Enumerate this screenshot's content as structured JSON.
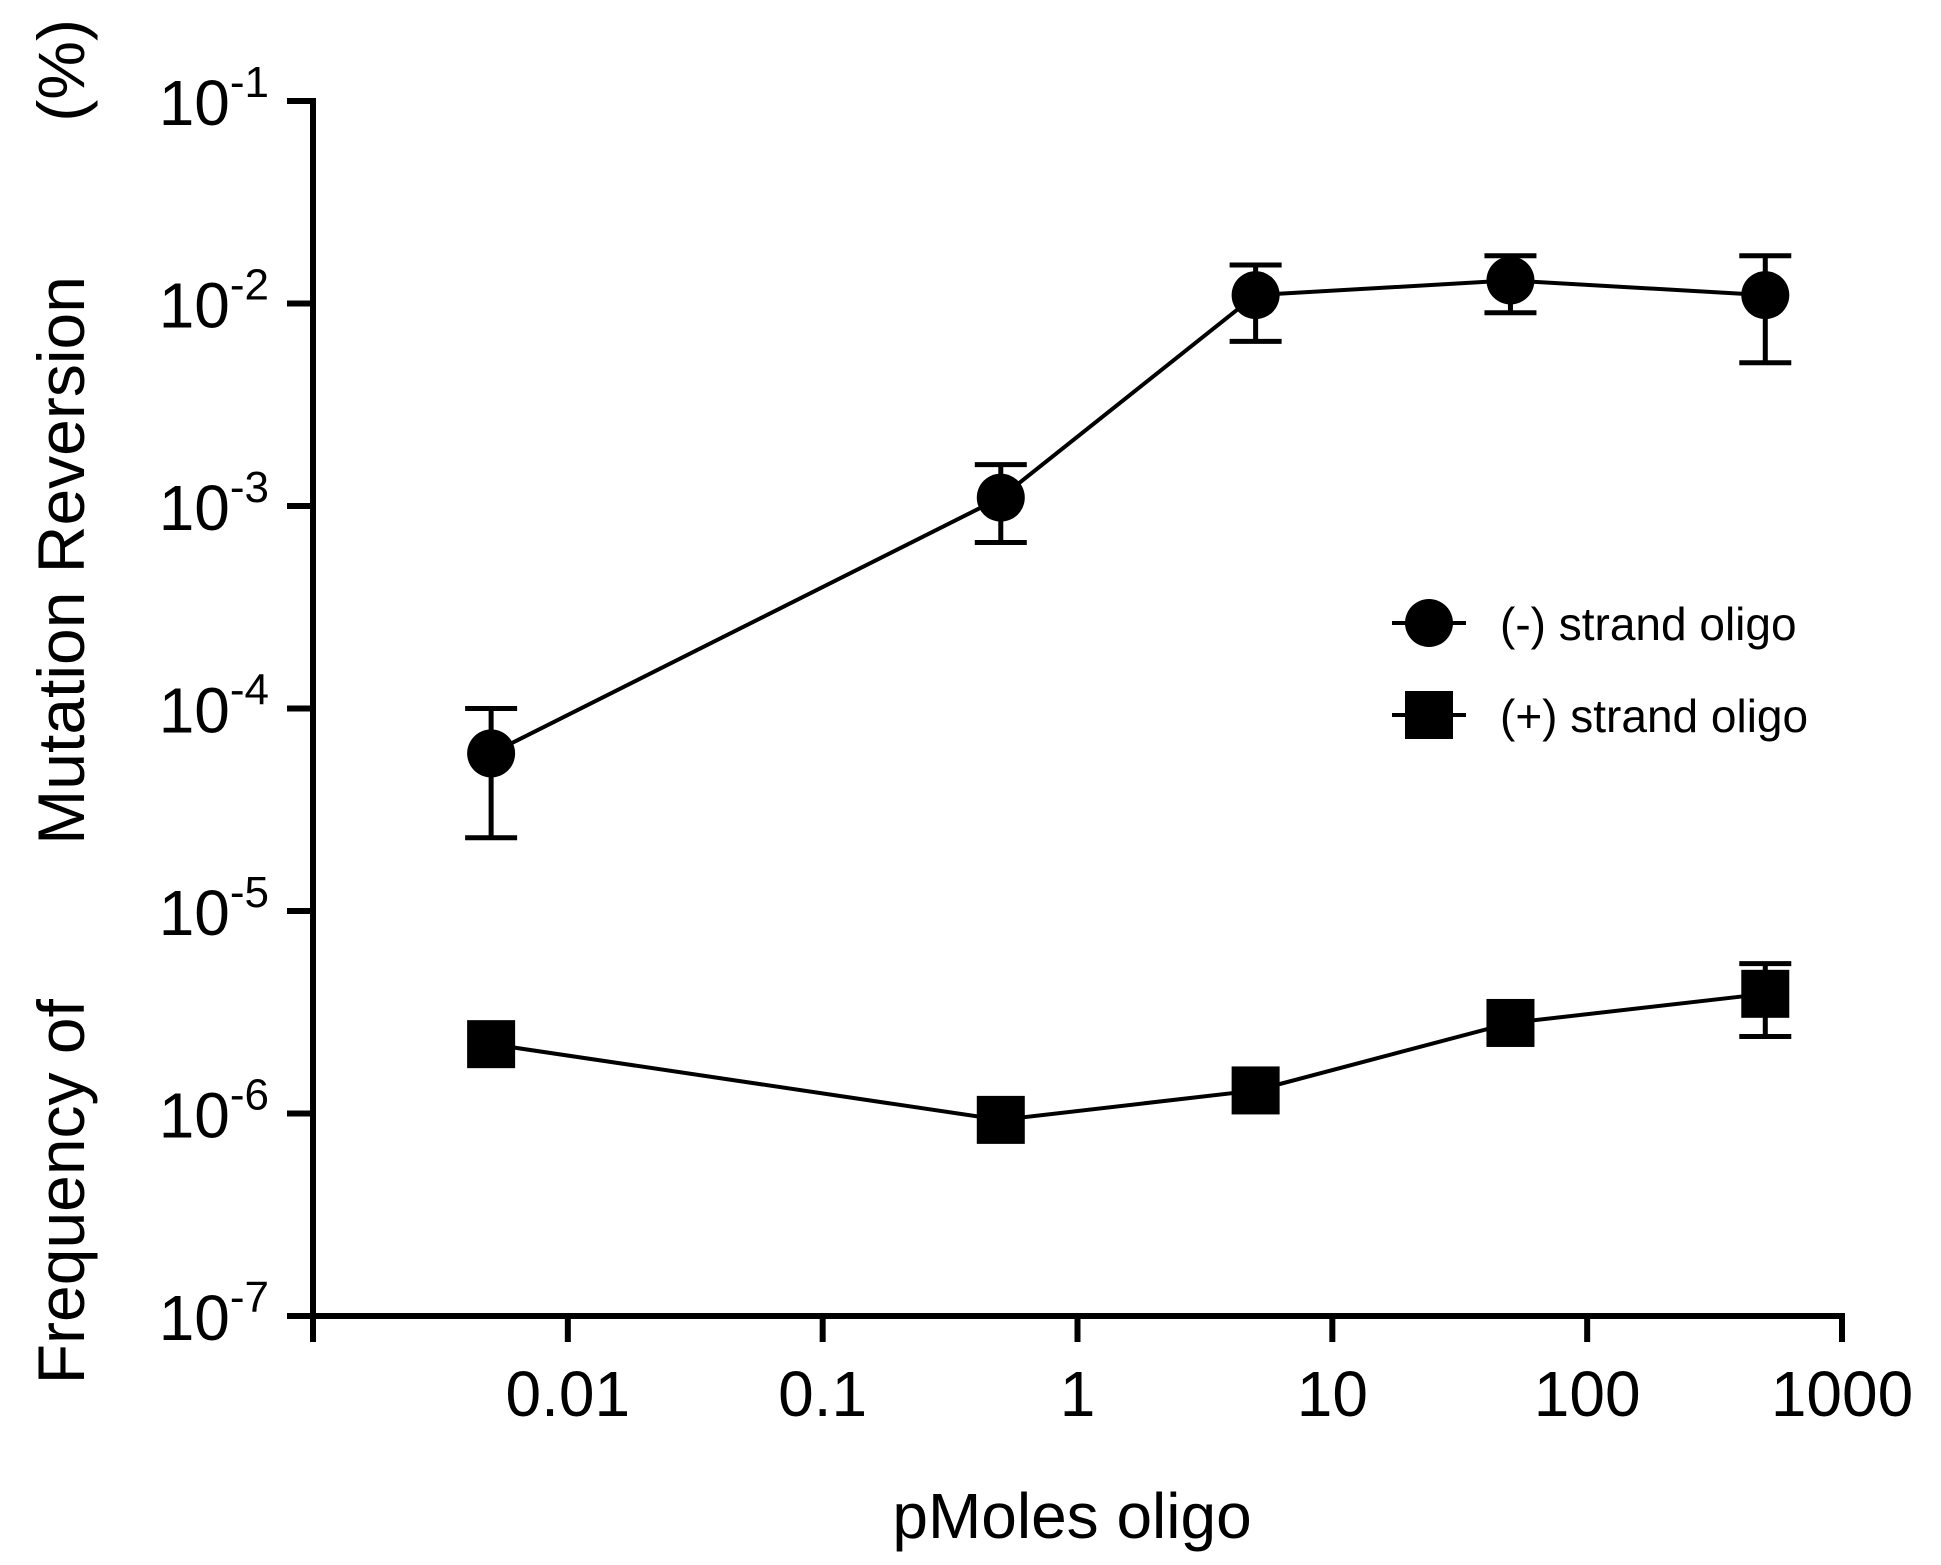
{
  "chart_data": {
    "type": "scatter",
    "xscale": "log",
    "yscale": "log",
    "xlabel": "pMoles oligo",
    "ylabel_parts": [
      "Frequency of",
      "Mutation Reversion",
      "(%)"
    ],
    "xlim": [
      0.001,
      1000
    ],
    "ylim": [
      1e-07,
      0.1
    ],
    "xticks": [
      {
        "value": 0.01,
        "label": "0.01"
      },
      {
        "value": 0.1,
        "label": "0.1"
      },
      {
        "value": 1,
        "label": "1"
      },
      {
        "value": 10,
        "label": "10"
      },
      {
        "value": 100,
        "label": "100"
      },
      {
        "value": 1000,
        "label": "1000"
      }
    ],
    "yticks": [
      {
        "value": 0.1,
        "base": "10",
        "exp": "-1"
      },
      {
        "value": 0.01,
        "base": "10",
        "exp": "-2"
      },
      {
        "value": 0.001,
        "base": "10",
        "exp": "-3"
      },
      {
        "value": 0.0001,
        "base": "10",
        "exp": "-4"
      },
      {
        "value": 1e-05,
        "base": "10",
        "exp": "-5"
      },
      {
        "value": 1e-06,
        "base": "10",
        "exp": "-6"
      },
      {
        "value": 1e-07,
        "base": "10",
        "exp": "-7"
      }
    ],
    "series": [
      {
        "name": "(-) strand oligo",
        "marker": "circle",
        "color": "#000000",
        "points": [
          {
            "x": 0.005,
            "y": 6e-05,
            "lo": 2.3e-05,
            "hi": 0.0001
          },
          {
            "x": 0.5,
            "y": 0.0011,
            "lo": 0.00066,
            "hi": 0.0016
          },
          {
            "x": 5,
            "y": 0.011,
            "lo": 0.0065,
            "hi": 0.0155
          },
          {
            "x": 50,
            "y": 0.013,
            "lo": 0.009,
            "hi": 0.0172
          },
          {
            "x": 500,
            "y": 0.011,
            "lo": 0.0051,
            "hi": 0.0172
          }
        ]
      },
      {
        "name": "(+) strand oligo",
        "marker": "square",
        "color": "#000000",
        "points": [
          {
            "x": 0.005,
            "y": 2.2e-06,
            "lo": null,
            "hi": null
          },
          {
            "x": 0.5,
            "y": 9.3e-07,
            "lo": null,
            "hi": null
          },
          {
            "x": 5,
            "y": 1.3e-06,
            "lo": null,
            "hi": null
          },
          {
            "x": 50,
            "y": 2.8e-06,
            "lo": null,
            "hi": null
          },
          {
            "x": 500,
            "y": 3.9e-06,
            "lo": 2.4e-06,
            "hi": 5.5e-06
          }
        ]
      }
    ],
    "legend_position": "right-middle"
  }
}
